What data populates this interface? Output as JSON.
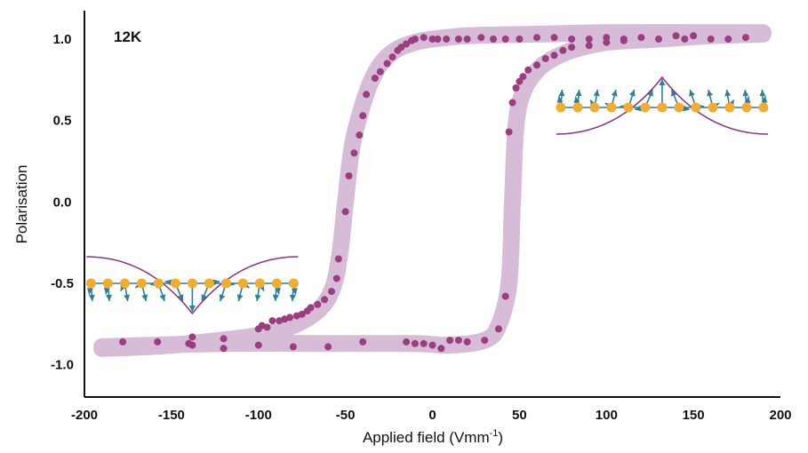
{
  "chart_data": {
    "type": "scatter",
    "title": "",
    "annotation": "12K",
    "xlabel": "Applied field (Vmm",
    "xlabel_superscript": "-1",
    "xlabel_close": ")",
    "ylabel": "Polarisation",
    "xlim": [
      -200,
      200
    ],
    "ylim": [
      -1.2,
      1.2
    ],
    "x_ticks": [
      -200,
      -150,
      -100,
      -50,
      0,
      50,
      100,
      150,
      200
    ],
    "x_tick_labels": [
      "-200",
      "-150",
      "-100",
      "-50",
      "0",
      "50",
      "100",
      "150",
      "200"
    ],
    "y_ticks": [
      1.0,
      0.5,
      0.0,
      -0.5,
      -1.0
    ],
    "y_tick_labels": [
      "1.0",
      "0.5",
      "0.0",
      "-0.5",
      "-1.0"
    ],
    "grid": false,
    "colors": {
      "points": "#9b3d7e",
      "band": "#d7bcd8",
      "arrow": "#2e7e9c",
      "atom": "#f2ad2f",
      "curve": "#8a3180",
      "axis": "#111111"
    },
    "series": [
      {
        "values_x": [
          -178,
          -158,
          -138,
          -138,
          -120,
          -120,
          -100,
          -98,
          -95,
          -92,
          -88,
          -85,
          -82,
          -78,
          -75,
          -72,
          -70,
          -66,
          -62,
          -58,
          -55,
          -54,
          -50,
          -48,
          -45,
          -42,
          -40,
          -38,
          -33,
          -30,
          -26,
          -23,
          -20,
          -18,
          -15,
          -12,
          -10,
          -5,
          0,
          3,
          8,
          15,
          20,
          28,
          35,
          42,
          50,
          60,
          70,
          80,
          90,
          100,
          110,
          120,
          130,
          140,
          145,
          150,
          160,
          170,
          180
        ],
        "values_y": [
          -0.86,
          -0.86,
          -0.83,
          -0.88,
          -0.84,
          -0.9,
          -0.78,
          -0.76,
          -0.77,
          -0.73,
          -0.73,
          -0.72,
          -0.71,
          -0.7,
          -0.69,
          -0.67,
          -0.65,
          -0.63,
          -0.6,
          -0.55,
          -0.47,
          -0.35,
          -0.06,
          0.16,
          0.3,
          0.41,
          0.53,
          0.66,
          0.76,
          0.8,
          0.85,
          0.89,
          0.93,
          0.95,
          0.97,
          0.99,
          1.0,
          1.01,
          1.0,
          1.0,
          1.0,
          1.0,
          1.0,
          1.01,
          1.0,
          1.0,
          1.0,
          1.01,
          1.01,
          1.0,
          1.0,
          1.01,
          1.0,
          1.01,
          1.0,
          1.02,
          1.0,
          1.02,
          1.0,
          1.0,
          1.01
        ]
      },
      {
        "values_x": [
          -140,
          -100,
          -80,
          -60,
          -40,
          -15,
          -10,
          -5,
          0,
          5,
          10,
          15,
          20,
          30,
          38,
          42,
          44,
          46,
          48,
          50,
          52,
          55,
          60,
          65,
          70,
          75,
          80,
          90,
          100,
          110
        ],
        "values_y": [
          -0.87,
          -0.88,
          -0.89,
          -0.89,
          -0.86,
          -0.86,
          -0.87,
          -0.87,
          -0.88,
          -0.9,
          -0.85,
          -0.85,
          -0.86,
          -0.85,
          -0.78,
          -0.58,
          0.43,
          0.61,
          0.7,
          0.74,
          0.77,
          0.81,
          0.84,
          0.88,
          0.9,
          0.93,
          0.95,
          0.96,
          0.98,
          0.99
        ]
      }
    ],
    "bands": [
      {
        "x": [
          -190,
          -150,
          -100,
          -80,
          -65,
          -57,
          -53,
          -50,
          -46,
          -40,
          -34,
          -28,
          -20,
          -10,
          0,
          20,
          60,
          100,
          150,
          190
        ],
        "y": [
          -0.9,
          -0.88,
          -0.82,
          -0.76,
          -0.66,
          -0.52,
          -0.3,
          0.0,
          0.35,
          0.6,
          0.77,
          0.87,
          0.94,
          0.98,
          1.0,
          1.02,
          1.03,
          1.04,
          1.04,
          1.04
        ]
      },
      {
        "x": [
          -190,
          -120,
          -60,
          -10,
          10,
          30,
          38,
          44,
          46,
          48,
          52,
          58,
          66,
          80,
          100,
          130,
          160,
          190
        ],
        "y": [
          -0.89,
          -0.87,
          -0.87,
          -0.87,
          -0.88,
          -0.85,
          -0.76,
          -0.5,
          0.0,
          0.47,
          0.67,
          0.78,
          0.86,
          0.93,
          0.98,
          1.0,
          1.02,
          1.03
        ]
      }
    ],
    "insets": [
      {
        "side": "left",
        "center_x": -138,
        "level_y": -0.5,
        "arrow_direction": "down"
      },
      {
        "side": "right",
        "center_x": 132,
        "level_y": 0.58,
        "arrow_direction": "up"
      }
    ]
  }
}
